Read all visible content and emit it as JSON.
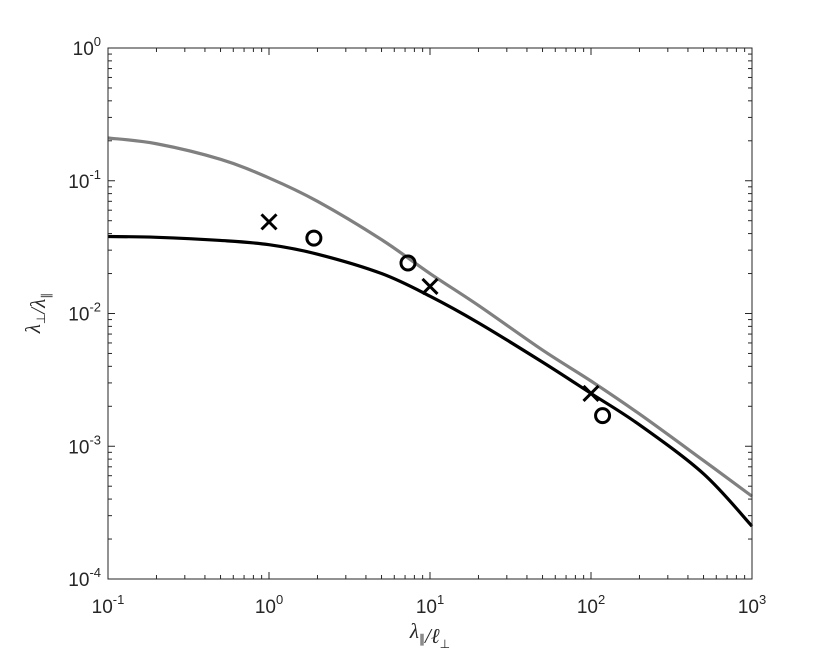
{
  "chart_data": {
    "type": "line",
    "xscale": "log",
    "yscale": "log",
    "xlim": [
      0.1,
      1000
    ],
    "ylim": [
      0.0001,
      1
    ],
    "grid": false,
    "box": true,
    "x_ticks": [
      {
        "value": 0.1,
        "base": "10",
        "exp": "-1"
      },
      {
        "value": 1,
        "base": "10",
        "exp": "0"
      },
      {
        "value": 10,
        "base": "10",
        "exp": "1"
      },
      {
        "value": 100,
        "base": "10",
        "exp": "2"
      },
      {
        "value": 1000,
        "base": "10",
        "exp": "3"
      }
    ],
    "y_ticks": [
      {
        "value": 0.0001,
        "base": "10",
        "exp": "-4"
      },
      {
        "value": 0.001,
        "base": "10",
        "exp": "-3"
      },
      {
        "value": 0.01,
        "base": "10",
        "exp": "-2"
      },
      {
        "value": 0.1,
        "base": "10",
        "exp": "-1"
      },
      {
        "value": 1,
        "base": "10",
        "exp": "0"
      }
    ],
    "xlabel": {
      "parts": [
        {
          "t": "λ"
        },
        {
          "t": "∥",
          "sub": true
        },
        {
          "t": "/ℓ"
        },
        {
          "t": "⊥",
          "sub": true
        }
      ]
    },
    "ylabel": {
      "parts": [
        {
          "t": "λ"
        },
        {
          "t": "⊥",
          "sub": true
        },
        {
          "t": "/λ"
        },
        {
          "t": "∥",
          "sub": true
        }
      ]
    },
    "series": [
      {
        "style": "line",
        "color": "#808080",
        "x": [
          0.1,
          0.2,
          0.5,
          1,
          2,
          5,
          10,
          20,
          50,
          100,
          200,
          500,
          1000
        ],
        "y": [
          0.21,
          0.19,
          0.145,
          0.105,
          0.07,
          0.036,
          0.02,
          0.0115,
          0.0053,
          0.0031,
          0.00175,
          0.00078,
          0.00042
        ]
      },
      {
        "style": "line",
        "color": "#000000",
        "x": [
          0.1,
          0.2,
          0.5,
          1,
          2,
          5,
          10,
          20,
          50,
          100,
          200,
          500,
          1000
        ],
        "y": [
          0.038,
          0.0375,
          0.0355,
          0.033,
          0.028,
          0.02,
          0.0135,
          0.0085,
          0.0043,
          0.0025,
          0.00145,
          0.00062,
          0.00025
        ]
      },
      {
        "style": "marker",
        "marker": "x",
        "color": "#000000",
        "x": [
          1,
          10,
          100
        ],
        "y": [
          0.049,
          0.016,
          0.0025
        ]
      },
      {
        "style": "marker",
        "marker": "o",
        "color": "#000000",
        "x": [
          1.9,
          7.3,
          118
        ],
        "y": [
          0.037,
          0.024,
          0.0017
        ]
      }
    ]
  }
}
